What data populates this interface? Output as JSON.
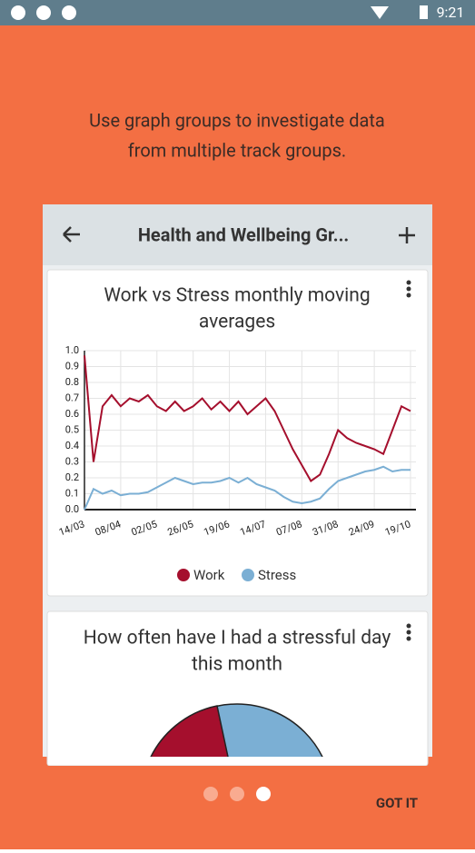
{
  "status_bar": {
    "time": "9:21"
  },
  "intro": [
    "Use graph groups to investigate data",
    "from multiple track groups."
  ],
  "app_bar": {
    "title": "Health and Wellbeing Gr..."
  },
  "cards": [
    {
      "chart_data": {
        "type": "line",
        "title": [
          "Work vs Stress monthly moving",
          "averages"
        ],
        "categories": [
          "14/03",
          null,
          null,
          null,
          "08/04",
          null,
          null,
          null,
          "02/05",
          null,
          null,
          null,
          "26/05",
          null,
          null,
          null,
          "19/06",
          null,
          null,
          null,
          "14/07",
          null,
          null,
          null,
          "07/08",
          null,
          null,
          null,
          "31/08",
          null,
          null,
          null,
          "24/09",
          null,
          null,
          null,
          "19/10"
        ],
        "series": [
          {
            "name": "Work",
            "color": "#a50f2d",
            "values": [
              0.97,
              0.3,
              0.65,
              0.72,
              0.65,
              0.7,
              0.68,
              0.72,
              0.65,
              0.62,
              0.68,
              0.62,
              0.65,
              0.7,
              0.63,
              0.68,
              0.62,
              0.68,
              0.6,
              0.65,
              0.7,
              0.62,
              0.5,
              0.38,
              0.28,
              0.18,
              0.22,
              0.35,
              0.5,
              0.45,
              0.42,
              0.4,
              0.38,
              0.35,
              0.5,
              0.65,
              0.62
            ]
          },
          {
            "name": "Stress",
            "color": "#7bafd4",
            "values": [
              0.0,
              0.13,
              0.1,
              0.12,
              0.09,
              0.1,
              0.1,
              0.11,
              0.14,
              0.17,
              0.2,
              0.18,
              0.16,
              0.17,
              0.17,
              0.18,
              0.2,
              0.17,
              0.2,
              0.16,
              0.14,
              0.12,
              0.08,
              0.05,
              0.04,
              0.05,
              0.07,
              0.13,
              0.18,
              0.2,
              0.22,
              0.24,
              0.25,
              0.27,
              0.24,
              0.25,
              0.25
            ]
          }
        ],
        "ylim": [
          0,
          1
        ],
        "yticks": [
          {
            "value": 0,
            "label": "0.0"
          },
          0.1,
          0.2,
          0.3,
          0.4,
          0.5,
          0.6,
          0.7,
          0.8,
          0.9,
          {
            "value": 1,
            "label": "1.0"
          }
        ],
        "grid": true
      }
    },
    {
      "title": [
        "How often have I had a stressful day",
        "this month"
      ]
    }
  ],
  "button": "GOT IT"
}
